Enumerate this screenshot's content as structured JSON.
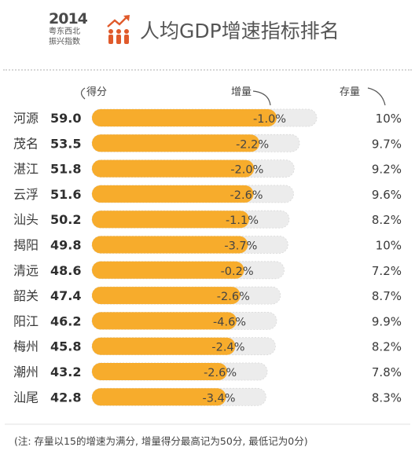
{
  "header": {
    "logo_year": "2014",
    "logo_line1": "粤东西北",
    "logo_line2": "振兴指数",
    "title": "人均GDP增速指标排名"
  },
  "columns": {
    "score": "得分",
    "increment": "增量",
    "stock": "存量"
  },
  "note": "(注: 存量以15的增速为满分, 增量得分最高记为50分, 最低记为0分)",
  "colors": {
    "bar": "#f7ac2c",
    "track": "#ececec",
    "text": "#3a3a3a"
  },
  "chart_data": {
    "type": "bar",
    "orientation": "horizontal",
    "categories": [
      "河源",
      "茂名",
      "湛江",
      "云浮",
      "汕头",
      "揭阳",
      "清远",
      "韶关",
      "阳江",
      "梅州",
      "潮州",
      "汕尾"
    ],
    "scores": [
      "59.0",
      "53.5",
      "51.8",
      "51.6",
      "50.2",
      "49.8",
      "48.6",
      "47.4",
      "46.2",
      "45.8",
      "43.2",
      "42.8"
    ],
    "increment_labels": [
      "-1.0%",
      "-2.2%",
      "-2.0%",
      "-2.6%",
      "-1.1%",
      "-3.7%",
      "-0.2%",
      "-2.6%",
      "-4.6%",
      "-2.4%",
      "-2.6%",
      "-3.4%"
    ],
    "stock_labels": [
      "10%",
      "9.7%",
      "9.2%",
      "9.6%",
      "8.2%",
      "10%",
      "7.2%",
      "8.7%",
      "9.9%",
      "8.2%",
      "7.8%",
      "8.3%"
    ],
    "series": [
      {
        "name": "增量",
        "values": [
          -1.0,
          -2.2,
          -2.0,
          -2.6,
          -1.1,
          -3.7,
          -0.2,
          -2.6,
          -4.6,
          -2.4,
          -2.6,
          -3.4
        ]
      },
      {
        "name": "存量",
        "values": [
          10,
          9.7,
          9.2,
          9.6,
          8.2,
          10,
          7.2,
          8.7,
          9.9,
          8.2,
          7.8,
          8.3
        ]
      }
    ]
  }
}
